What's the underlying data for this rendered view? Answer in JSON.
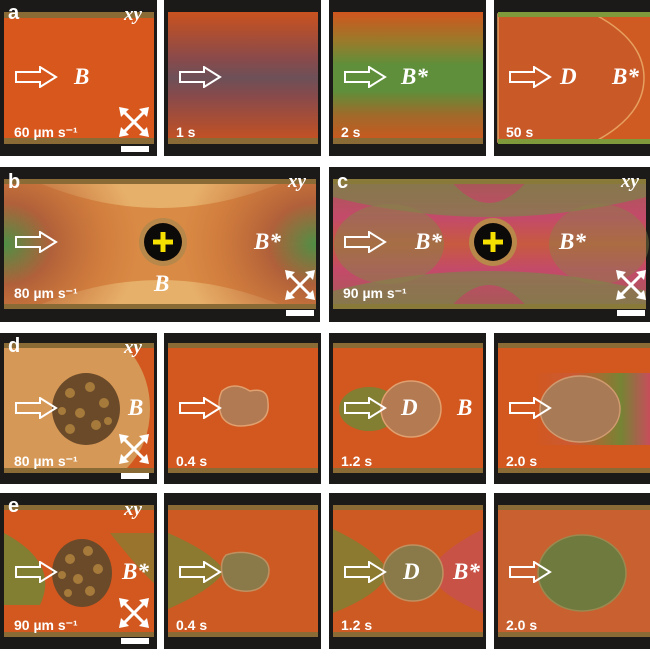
{
  "panel_letters": {
    "a": "a",
    "b": "b",
    "c": "c",
    "d": "d",
    "e": "e"
  },
  "orientation_label": "xy",
  "row_a": {
    "speed": "60 µm s⁻¹",
    "t1": "1 s",
    "t2": "2 s",
    "t3": "50 s",
    "phase0": "B",
    "phase2": "B*",
    "phase3a": "D",
    "phase3b": "B*"
  },
  "row_bc": {
    "speed_b": "80 µm s⁻¹",
    "speed_c": "90 µm s⁻¹",
    "b_right": "B*",
    "b_bottom": "B",
    "c_left": "B*",
    "c_right": "B*"
  },
  "row_d": {
    "speed": "80 µm s⁻¹",
    "t1": "0.4 s",
    "t2": "1.2 s",
    "t3": "2.0 s",
    "phase0": "B",
    "phase2a": "D",
    "phase2b": "B"
  },
  "row_e": {
    "speed": "90 µm s⁻¹",
    "t1": "0.4 s",
    "t2": "1.2 s",
    "t3": "2.0 s",
    "phase0": "B*",
    "phase2a": "D",
    "phase2b": "B*"
  },
  "icons": [
    "flow-arrow-icon",
    "crossed-polarizers-icon",
    "scale-bar",
    "particle-cross-icon"
  ],
  "colors": {
    "orange": "#d35a1f",
    "green": "#5f8a3c",
    "magenta": "#c1446b",
    "dark": "#1c1a18",
    "yellow": "#f5e000"
  }
}
